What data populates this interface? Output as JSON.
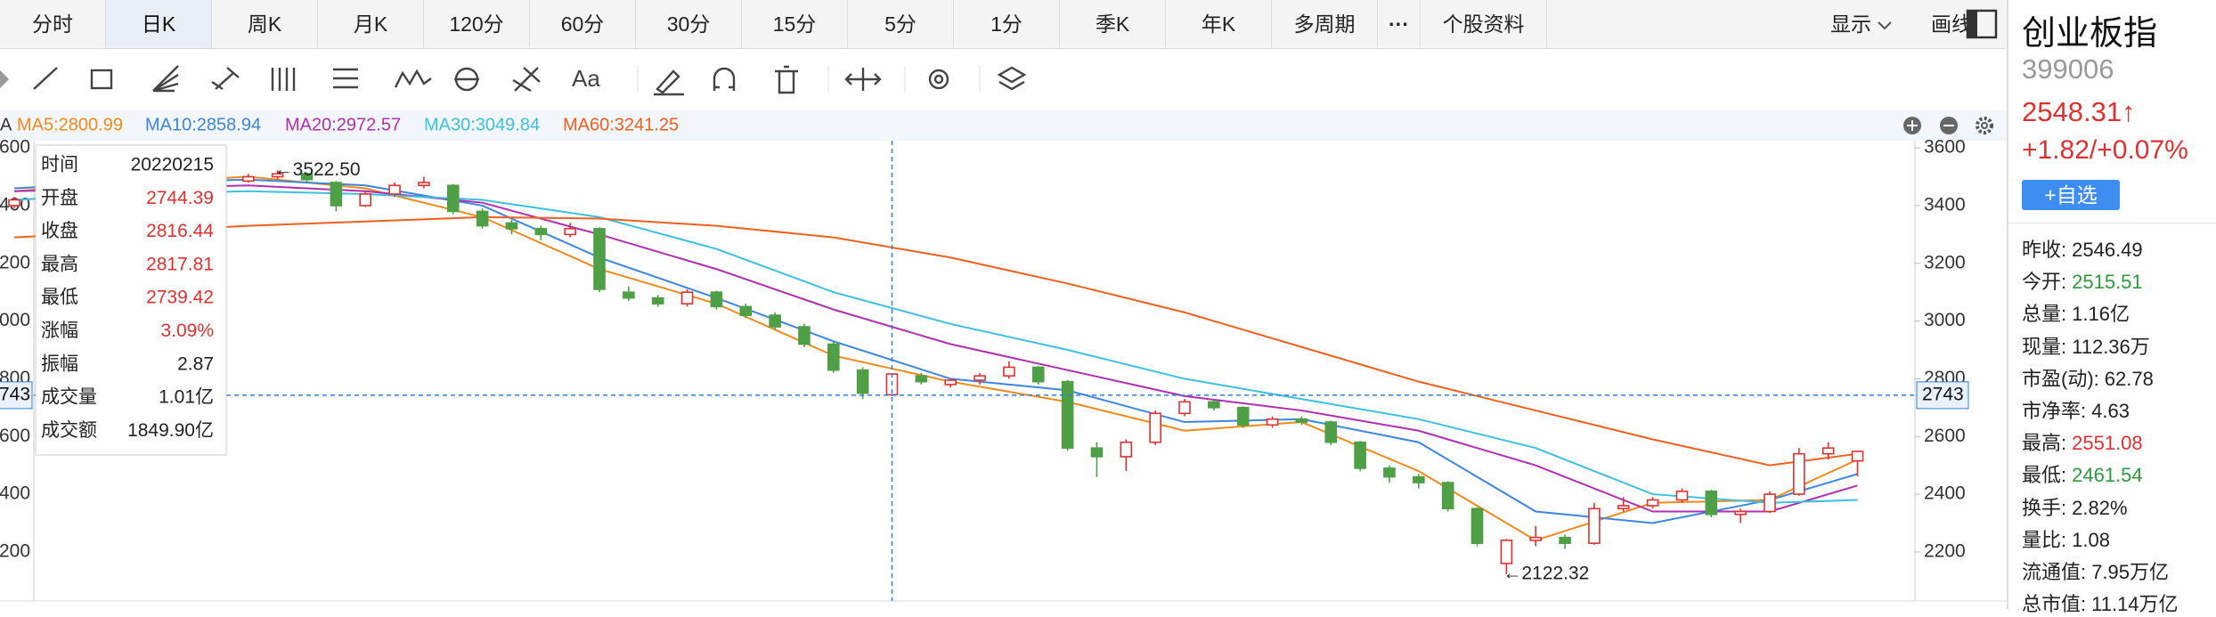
{
  "tabs": [
    "分时",
    "日K",
    "周K",
    "月K",
    "120分",
    "60分",
    "30分",
    "15分",
    "5分",
    "1分",
    "季K",
    "年K",
    "多周期",
    "···",
    "个股资料"
  ],
  "tab_right": [
    "显示",
    "画线"
  ],
  "toolbar_text": "Aa",
  "stock": {
    "name": "创业板指",
    "code": "399006",
    "price": "2548.31↑",
    "change": "+1.82/+0.07%",
    "button": "+自选",
    "stats": [
      {
        "label": "昨收:",
        "value": "2546.49",
        "color": "#222222"
      },
      {
        "label": "今开:",
        "value": "2515.51",
        "color": "#2e9a3e"
      },
      {
        "label": "总量:",
        "value": "1.16亿",
        "color": "#222222"
      },
      {
        "label": "现量:",
        "value": "112.36万",
        "color": "#222222"
      },
      {
        "label": "市盈(动):",
        "value": "62.78",
        "color": "#222222"
      },
      {
        "label": "市净率:",
        "value": "4.63",
        "color": "#222222"
      },
      {
        "label": "最高:",
        "value": "2551.08",
        "color": "#e03131"
      },
      {
        "label": "最低:",
        "value": "2461.54",
        "color": "#2e9a3e"
      },
      {
        "label": "换手:",
        "value": "2.82%",
        "color": "#222222"
      },
      {
        "label": "量比:",
        "value": "1.08",
        "color": "#222222"
      },
      {
        "label": "流通值:",
        "value": "7.95万亿",
        "color": "#222222"
      },
      {
        "label": "总市值:",
        "value": "11.14万亿",
        "color": "#222222"
      }
    ]
  },
  "tooltip": [
    {
      "label": "时间",
      "value": "20220215",
      "color": "#222222"
    },
    {
      "label": "开盘",
      "value": "2744.39",
      "color": "#e03131"
    },
    {
      "label": "收盘",
      "value": "2816.44",
      "color": "#e03131"
    },
    {
      "label": "最高",
      "value": "2817.81",
      "color": "#e03131"
    },
    {
      "label": "最低",
      "value": "2739.42",
      "color": "#e03131"
    },
    {
      "label": "涨幅",
      "value": "3.09%",
      "color": "#e03131"
    },
    {
      "label": "振幅",
      "value": "2.87",
      "color": "#222222"
    },
    {
      "label": "成交量",
      "value": "1.01亿",
      "color": "#222222"
    },
    {
      "label": "成交额",
      "value": "1849.90亿",
      "color": "#222222"
    }
  ],
  "chart_data": {
    "type": "candlestick",
    "up_color": "#e03131",
    "down_color": "#4e9f45",
    "candles": [
      [
        3400,
        3430,
        3390,
        3420
      ],
      [
        3420,
        3450,
        3410,
        3440
      ],
      [
        3445,
        3460,
        3430,
        3450
      ],
      [
        3450,
        3470,
        3440,
        3460
      ],
      [
        3465,
        3480,
        3455,
        3470
      ],
      [
        3470,
        3490,
        3460,
        3480
      ],
      [
        3480,
        3500,
        3470,
        3490
      ],
      [
        3490,
        3500,
        3470,
        3480
      ],
      [
        3485,
        3510,
        3480,
        3500
      ],
      [
        3500,
        3522.5,
        3490,
        3510
      ],
      [
        3510,
        3515,
        3480,
        3490
      ],
      [
        3480,
        3485,
        3380,
        3400
      ],
      [
        3400,
        3450,
        3395,
        3440
      ],
      [
        3440,
        3480,
        3430,
        3470
      ],
      [
        3470,
        3500,
        3460,
        3480
      ],
      [
        3470,
        3475,
        3370,
        3380
      ],
      [
        3380,
        3390,
        3320,
        3330
      ],
      [
        3340,
        3350,
        3300,
        3320
      ],
      [
        3320,
        3330,
        3280,
        3300
      ],
      [
        3300,
        3340,
        3290,
        3320
      ],
      [
        3320,
        3325,
        3100,
        3110
      ],
      [
        3100,
        3120,
        3070,
        3080
      ],
      [
        3080,
        3090,
        3050,
        3060
      ],
      [
        3060,
        3110,
        3050,
        3100
      ],
      [
        3100,
        3105,
        3040,
        3050
      ],
      [
        3050,
        3060,
        3010,
        3020
      ],
      [
        3020,
        3030,
        2970,
        2980
      ],
      [
        2980,
        2990,
        2910,
        2920
      ],
      [
        2920,
        2930,
        2820,
        2830
      ],
      [
        2830,
        2840,
        2730,
        2750
      ],
      [
        2744.39,
        2817.81,
        2739.42,
        2816.44
      ],
      [
        2810,
        2820,
        2780,
        2790
      ],
      [
        2780,
        2800,
        2770,
        2795
      ],
      [
        2795,
        2820,
        2780,
        2810
      ],
      [
        2810,
        2860,
        2800,
        2840
      ],
      [
        2840,
        2845,
        2780,
        2790
      ],
      [
        2790,
        2795,
        2550,
        2560
      ],
      [
        2560,
        2580,
        2460,
        2530
      ],
      [
        2530,
        2590,
        2480,
        2580
      ],
      [
        2580,
        2690,
        2570,
        2680
      ],
      [
        2680,
        2730,
        2670,
        2720
      ],
      [
        2720,
        2725,
        2690,
        2700
      ],
      [
        2700,
        2705,
        2630,
        2640
      ],
      [
        2640,
        2670,
        2630,
        2660
      ],
      [
        2660,
        2670,
        2640,
        2650
      ],
      [
        2650,
        2655,
        2570,
        2580
      ],
      [
        2580,
        2585,
        2480,
        2490
      ],
      [
        2490,
        2500,
        2440,
        2460
      ],
      [
        2460,
        2470,
        2420,
        2440
      ],
      [
        2440,
        2445,
        2340,
        2350
      ],
      [
        2350,
        2355,
        2220,
        2230
      ],
      [
        2160,
        2245,
        2122.32,
        2240
      ],
      [
        2240,
        2290,
        2220,
        2250
      ],
      [
        2250,
        2260,
        2210,
        2230
      ],
      [
        2230,
        2370,
        2225,
        2350
      ],
      [
        2350,
        2390,
        2340,
        2360
      ],
      [
        2360,
        2390,
        2350,
        2380
      ],
      [
        2380,
        2420,
        2370,
        2410
      ],
      [
        2410,
        2415,
        2320,
        2330
      ],
      [
        2330,
        2350,
        2300,
        2340
      ],
      [
        2340,
        2410,
        2335,
        2400
      ],
      [
        2400,
        2560,
        2395,
        2540
      ],
      [
        2540,
        2580,
        2520,
        2560
      ],
      [
        2515.51,
        2551.08,
        2461.54,
        2548.31
      ]
    ],
    "ma_index": [
      0,
      4,
      8,
      12,
      16,
      20,
      24,
      28,
      32,
      36,
      40,
      44,
      48,
      52,
      56,
      60,
      63
    ],
    "ma": [
      {
        "label": "MA5:2800.99",
        "color": "#f08a1c",
        "values": [
          3450,
          3480,
          3500,
          3460,
          3360,
          3180,
          3060,
          2880,
          2790,
          2720,
          2620,
          2650,
          2480,
          2240,
          2370,
          2380,
          2520
        ]
      },
      {
        "label": "MA10:2858.94",
        "color": "#3d86e0",
        "values": [
          3460,
          3480,
          3490,
          3470,
          3400,
          3220,
          3080,
          2930,
          2800,
          2760,
          2650,
          2660,
          2580,
          2340,
          2300,
          2380,
          2470
        ]
      },
      {
        "label": "MA20:2972.57",
        "color": "#b02fb0",
        "values": [
          3450,
          3460,
          3470,
          3450,
          3410,
          3300,
          3180,
          3040,
          2920,
          2830,
          2740,
          2690,
          2620,
          2500,
          2340,
          2340,
          2430
        ]
      },
      {
        "label": "MA30:3049.84",
        "color": "#3cc0e0",
        "values": [
          3420,
          3440,
          3450,
          3440,
          3420,
          3360,
          3250,
          3100,
          2990,
          2900,
          2800,
          2730,
          2660,
          2560,
          2400,
          2370,
          2380
        ]
      },
      {
        "label": "MA60:3241.25",
        "color": "#f0601e",
        "values": [
          3290,
          3310,
          3330,
          3345,
          3360,
          3355,
          3330,
          3290,
          3220,
          3130,
          3030,
          2910,
          2790,
          2690,
          2590,
          2500,
          2540
        ]
      }
    ],
    "ylim": [
      2030,
      3625
    ],
    "yticks": [
      3600,
      3400,
      3200,
      3000,
      2800,
      2600,
      2400,
      2200
    ],
    "crosshair": {
      "index": 30,
      "value": 2743,
      "label": "2743"
    },
    "annotations": [
      {
        "index": 9,
        "value": 3522.5,
        "label": "←3522.50"
      },
      {
        "index": 51,
        "value": 2122.32,
        "label": "←2122.32"
      }
    ]
  }
}
